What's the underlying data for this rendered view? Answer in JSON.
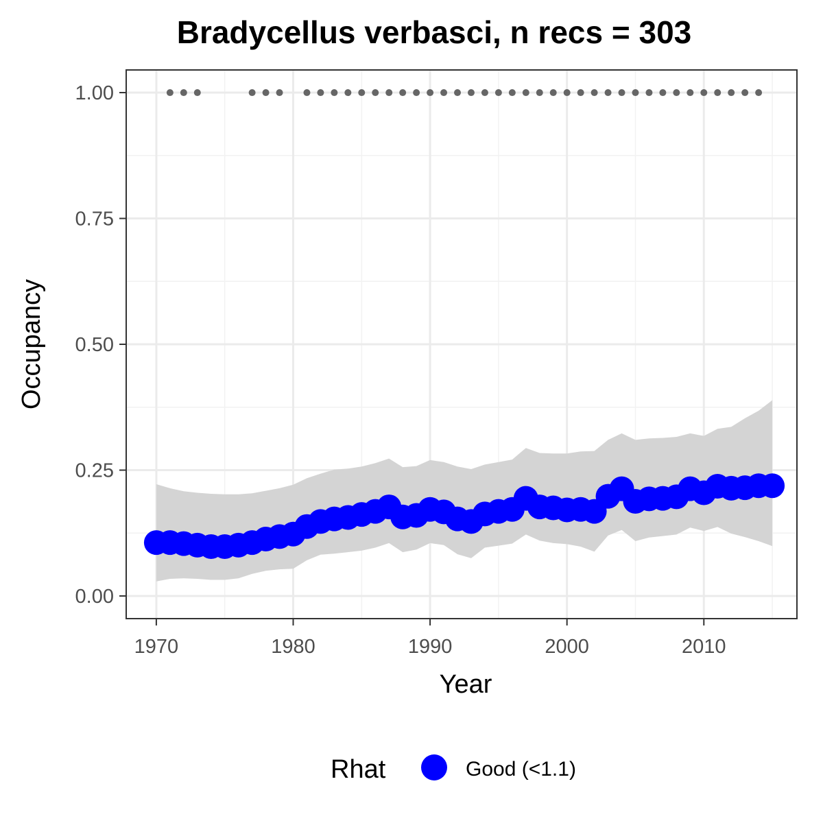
{
  "chart_data": {
    "type": "line",
    "title": "Bradycellus verbasci, n recs = 303",
    "xlabel": "Year",
    "ylabel": "Occupancy",
    "xlim": [
      1967.8,
      2016.8
    ],
    "ylim": [
      -0.045,
      1.045
    ],
    "x_ticks": [
      1970,
      1980,
      1990,
      2000,
      2010
    ],
    "x_tick_labels": [
      "1970",
      "1980",
      "1990",
      "2000",
      "2010"
    ],
    "y_ticks": [
      0,
      0.25,
      0.5,
      0.75,
      1.0
    ],
    "y_tick_labels": [
      "0.00",
      "0.25",
      "0.50",
      "0.75",
      "1.00"
    ],
    "grid": true,
    "years": [
      1970,
      1971,
      1972,
      1973,
      1974,
      1975,
      1976,
      1977,
      1978,
      1979,
      1980,
      1981,
      1982,
      1983,
      1984,
      1985,
      1986,
      1987,
      1988,
      1989,
      1990,
      1991,
      1992,
      1993,
      1994,
      1995,
      1996,
      1997,
      1998,
      1999,
      2000,
      2001,
      2002,
      2003,
      2004,
      2005,
      2006,
      2007,
      2008,
      2009,
      2010,
      2011,
      2012,
      2013,
      2014,
      2015
    ],
    "series": [
      {
        "name": "Good (<1.1)",
        "color": "#0000ff",
        "values": [
          0.106,
          0.106,
          0.104,
          0.101,
          0.098,
          0.098,
          0.101,
          0.106,
          0.113,
          0.118,
          0.123,
          0.138,
          0.148,
          0.153,
          0.156,
          0.162,
          0.168,
          0.177,
          0.157,
          0.16,
          0.172,
          0.167,
          0.153,
          0.148,
          0.163,
          0.168,
          0.172,
          0.194,
          0.177,
          0.175,
          0.171,
          0.172,
          0.168,
          0.198,
          0.213,
          0.188,
          0.193,
          0.194,
          0.197,
          0.213,
          0.205,
          0.218,
          0.214,
          0.215,
          0.219,
          0.219
        ]
      }
    ],
    "ci_upper": [
      0.222,
      0.214,
      0.208,
      0.205,
      0.203,
      0.202,
      0.202,
      0.204,
      0.209,
      0.214,
      0.221,
      0.234,
      0.243,
      0.251,
      0.253,
      0.257,
      0.264,
      0.273,
      0.256,
      0.258,
      0.27,
      0.266,
      0.257,
      0.252,
      0.261,
      0.266,
      0.271,
      0.294,
      0.284,
      0.283,
      0.283,
      0.287,
      0.288,
      0.31,
      0.323,
      0.31,
      0.313,
      0.314,
      0.316,
      0.323,
      0.318,
      0.332,
      0.336,
      0.353,
      0.368,
      0.389
    ],
    "ci_lower": [
      0.029,
      0.034,
      0.035,
      0.034,
      0.032,
      0.032,
      0.035,
      0.044,
      0.05,
      0.053,
      0.054,
      0.071,
      0.082,
      0.084,
      0.087,
      0.09,
      0.096,
      0.105,
      0.087,
      0.092,
      0.105,
      0.101,
      0.083,
      0.075,
      0.096,
      0.1,
      0.104,
      0.122,
      0.11,
      0.105,
      0.103,
      0.098,
      0.088,
      0.12,
      0.131,
      0.109,
      0.116,
      0.119,
      0.122,
      0.136,
      0.129,
      0.137,
      0.124,
      0.117,
      0.109,
      0.099
    ],
    "ci_color": "#d4d4d4",
    "record_years": [
      1971,
      1972,
      1973,
      1977,
      1978,
      1979,
      1981,
      1982,
      1983,
      1984,
      1985,
      1986,
      1987,
      1988,
      1989,
      1990,
      1991,
      1992,
      1993,
      1994,
      1995,
      1996,
      1997,
      1998,
      1999,
      2000,
      2001,
      2002,
      2003,
      2004,
      2005,
      2006,
      2007,
      2008,
      2009,
      2010,
      2011,
      2012,
      2013,
      2014
    ],
    "record_value": 1.0,
    "record_color": "#666666",
    "legend": {
      "title": "Rhat",
      "items": [
        {
          "label": "Good (<1.1)",
          "color": "#0000ff"
        }
      ],
      "placement": "bottom"
    }
  }
}
